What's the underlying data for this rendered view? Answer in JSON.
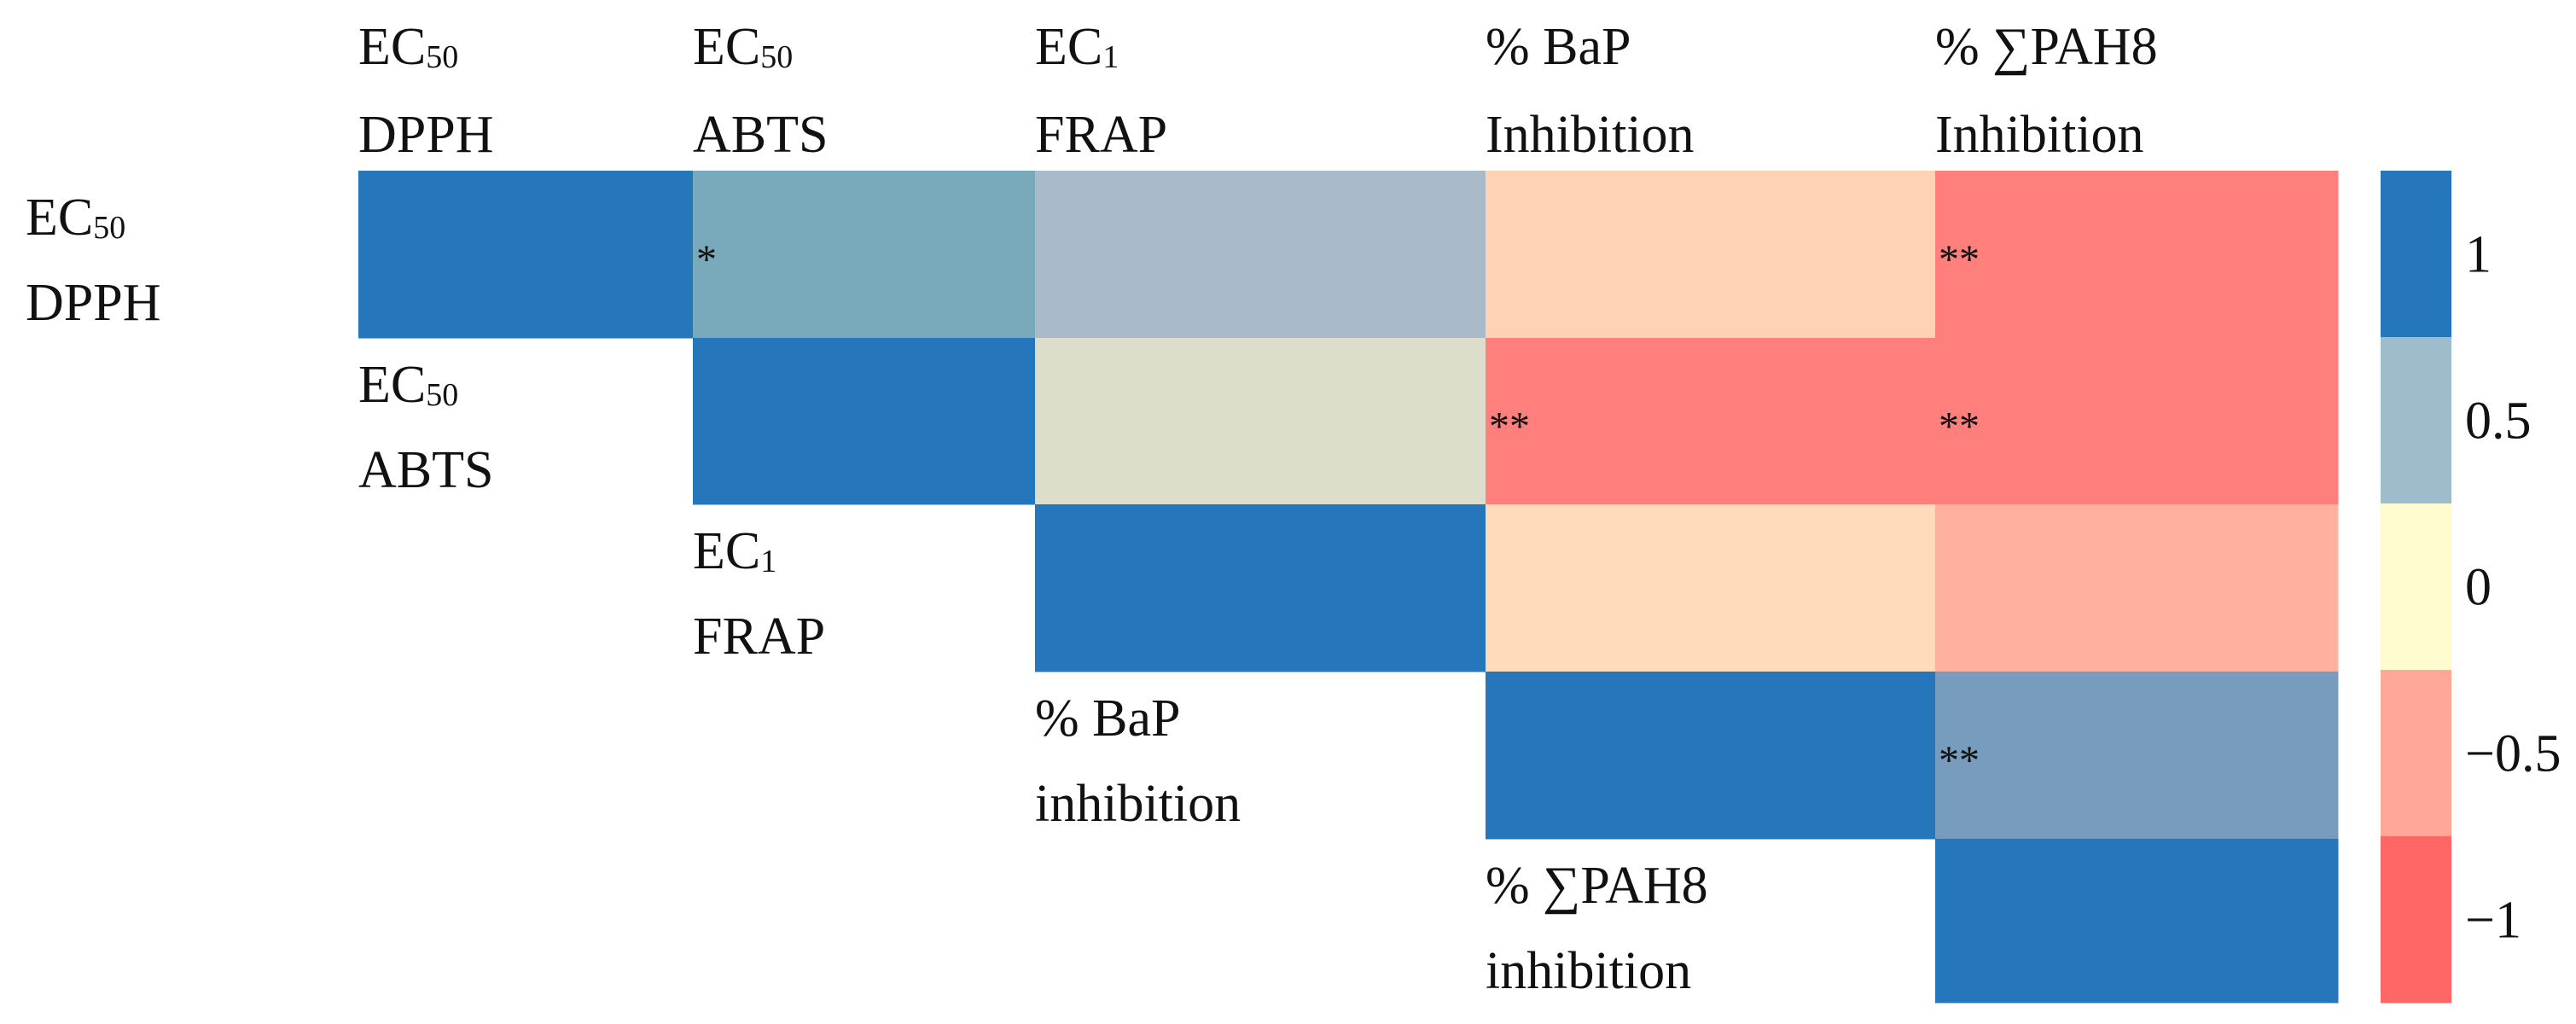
{
  "chart_data": {
    "type": "heatmap",
    "variables": [
      {
        "main": "EC",
        "sub": "50",
        "line2": "DPPH"
      },
      {
        "main": "EC",
        "sub": "50",
        "line2": "ABTS"
      },
      {
        "main": "EC",
        "sub": "1",
        "line2": "FRAP"
      },
      {
        "main": "% BaP",
        "sub": "",
        "line2": "Inhibition"
      },
      {
        "main": "% ∑PAH8",
        "sub": "",
        "line2": "Inhibition"
      }
    ],
    "row_labels": [
      {
        "main": "EC",
        "sub": "50",
        "line2": "DPPH"
      },
      {
        "main": "EC",
        "sub": "50",
        "line2": "ABTS"
      },
      {
        "main": "EC",
        "sub": "1",
        "line2": "FRAP"
      },
      {
        "main": "% BaP",
        "sub": "",
        "line2": "inhibition"
      },
      {
        "main": "% ∑PAH8",
        "sub": "",
        "line2": "inhibition"
      }
    ],
    "matrix": [
      [
        1,
        0.6,
        0.45,
        -0.25,
        -0.85
      ],
      [
        null,
        1,
        0.2,
        -0.85,
        -0.85
      ],
      [
        null,
        null,
        1,
        -0.2,
        -0.45
      ],
      [
        null,
        null,
        null,
        1,
        0.65
      ],
      [
        null,
        null,
        null,
        null,
        1
      ]
    ],
    "significance": [
      [
        "",
        "*",
        "",
        "",
        "**"
      ],
      [
        "",
        "",
        "",
        "**",
        "**"
      ],
      [
        "",
        "",
        "",
        "",
        ""
      ],
      [
        "",
        "",
        "",
        "",
        "**"
      ],
      [
        "",
        "",
        "",
        "",
        ""
      ]
    ],
    "colorbar": {
      "ticks": [
        "1",
        "0.5",
        "0",
        "−0.5",
        "−1"
      ],
      "colors": [
        "#2676bb",
        "#9ebccc",
        "#fffcd0",
        "#ffa799",
        "#ff6766"
      ]
    },
    "colors": {
      "strong_positive": "#2676bb",
      "strong_negative": "#ff8784"
    },
    "grid": false
  }
}
